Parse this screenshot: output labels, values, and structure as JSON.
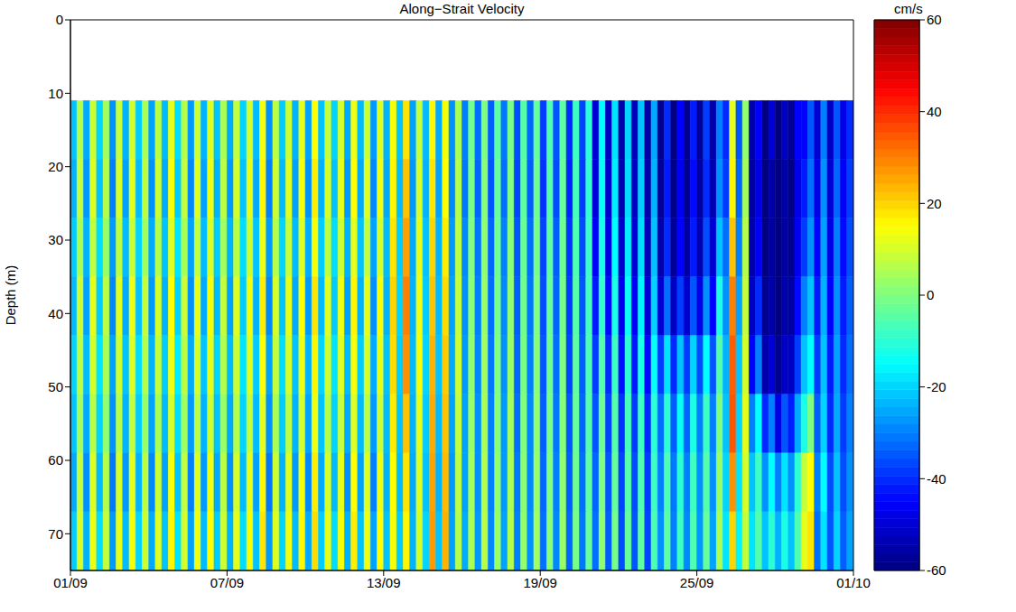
{
  "chart_data": {
    "type": "heatmap",
    "title": "Along−Strait Velocity",
    "y_label": "Depth (m)",
    "x_bins": [
      0,
      0.25,
      0.5,
      0.75,
      1,
      1.25,
      1.5,
      1.75,
      2,
      2.25,
      2.5,
      2.75,
      3,
      3.25,
      3.5,
      3.75,
      4,
      4.25,
      4.5,
      4.75,
      5,
      5.25,
      5.5,
      5.75,
      6,
      6.25,
      6.5,
      6.75,
      7,
      7.25,
      7.5,
      7.75,
      8,
      8.25,
      8.5,
      8.75,
      9,
      9.25,
      9.5,
      9.75,
      10,
      10.25,
      10.5,
      10.75,
      11,
      11.25,
      11.5,
      11.75,
      12,
      12.25,
      12.5,
      12.75,
      13,
      13.25,
      13.5,
      13.75,
      14,
      14.25,
      14.5,
      14.75,
      15,
      15.25,
      15.5,
      15.75,
      16,
      16.25,
      16.5,
      16.75,
      17,
      17.25,
      17.5,
      17.75,
      18,
      18.25,
      18.5,
      18.75,
      19,
      19.25,
      19.5,
      19.75,
      20,
      20.25,
      20.5,
      20.75,
      21,
      21.25,
      21.5,
      21.75,
      22,
      22.25,
      22.5,
      22.75,
      23,
      23.25,
      23.5,
      23.75,
      24,
      24.25,
      24.5,
      24.75,
      25,
      25.25,
      25.5,
      25.75,
      26,
      26.25,
      26.5,
      26.75,
      27,
      27.25,
      27.5,
      27.75,
      28,
      28.25,
      28.5,
      28.75,
      29,
      29.25,
      29.5,
      29.75,
      30
    ],
    "xlim": [
      0,
      30
    ],
    "xticks": [
      {
        "value": 0,
        "label": "01/09"
      },
      {
        "value": 6,
        "label": "07/09"
      },
      {
        "value": 12,
        "label": "13/09"
      },
      {
        "value": 18,
        "label": "19/09"
      },
      {
        "value": 24,
        "label": "25/09"
      },
      {
        "value": 30,
        "label": "01/10"
      }
    ],
    "y_bins": [
      11,
      19,
      27,
      35,
      43,
      51,
      59,
      67,
      75
    ],
    "ylim": [
      0,
      75
    ],
    "yticks": [
      0,
      10,
      20,
      30,
      40,
      50,
      60,
      70
    ],
    "values": [
      [
        -22,
        6,
        -25,
        9,
        -20,
        4,
        -28,
        8,
        -24,
        10,
        -21,
        5,
        -26,
        7,
        -23,
        12,
        -19,
        6,
        -27,
        9,
        -24,
        11,
        -22,
        5,
        -25,
        8,
        -20,
        10,
        -23,
        14,
        -28,
        7,
        -21,
        9,
        -24,
        12,
        -26,
        15,
        -22,
        8,
        -20,
        10,
        -25,
        13,
        -23,
        9,
        -27,
        11,
        -24,
        14,
        -22,
        18,
        -26,
        8,
        -23,
        16,
        -25,
        14,
        -28,
        5,
        -30,
        -2,
        -32,
        0,
        -34,
        -4,
        -31,
        -1,
        -36,
        -5,
        -33,
        -3,
        -38,
        -6,
        -35,
        -4,
        -40,
        -8,
        -37,
        -10,
        -50,
        -15,
        -52,
        -18,
        -55,
        -20,
        -53,
        -22,
        -56,
        -25,
        -58,
        -40,
        -60,
        -45,
        -58,
        -42,
        -57,
        -38,
        -55,
        -30,
        -40,
        12,
        -35,
        2,
        -55,
        -45,
        -60,
        -50,
        -60,
        -52,
        -58,
        -45,
        -45,
        -35,
        -50,
        -30,
        -52,
        -35,
        -48,
        -40
      ],
      [
        -24,
        8,
        -27,
        11,
        -22,
        6,
        -30,
        10,
        -26,
        12,
        -23,
        7,
        -28,
        9,
        -25,
        14,
        -21,
        8,
        -29,
        11,
        -26,
        13,
        -24,
        7,
        -27,
        10,
        -22,
        12,
        -25,
        16,
        -30,
        9,
        -23,
        11,
        -26,
        14,
        -28,
        17,
        -24,
        10,
        -22,
        12,
        -27,
        15,
        -25,
        11,
        -29,
        13,
        -25,
        16,
        -23,
        22,
        -27,
        10,
        -24,
        18,
        -26,
        15,
        -29,
        6,
        -31,
        -1,
        -33,
        1,
        -35,
        -3,
        -32,
        0,
        -37,
        -4,
        -34,
        -2,
        -39,
        -5,
        -36,
        -3,
        -41,
        -7,
        -38,
        -9,
        -49,
        -14,
        -51,
        -17,
        -54,
        -19,
        -52,
        -21,
        -55,
        -24,
        -57,
        -42,
        -59,
        -46,
        -58,
        -44,
        -56,
        -40,
        -54,
        -28,
        -38,
        16,
        -33,
        4,
        -56,
        -48,
        -60,
        -55,
        -60,
        -55,
        -59,
        -48,
        -42,
        -32,
        -48,
        -28,
        -50,
        -33,
        -46,
        -38
      ],
      [
        -21,
        5,
        -24,
        8,
        -19,
        3,
        -27,
        7,
        -23,
        9,
        -20,
        4,
        -25,
        6,
        -22,
        11,
        -18,
        5,
        -26,
        8,
        -23,
        10,
        -21,
        4,
        -24,
        7,
        -19,
        9,
        -22,
        13,
        -27,
        6,
        -20,
        8,
        -23,
        11,
        -25,
        14,
        -21,
        7,
        -19,
        9,
        -24,
        12,
        -22,
        8,
        -26,
        10,
        -23,
        18,
        -21,
        26,
        -25,
        12,
        -22,
        20,
        -24,
        17,
        -27,
        7,
        -29,
        0,
        -31,
        2,
        -33,
        -2,
        -30,
        1,
        -35,
        -3,
        -32,
        -1,
        -37,
        -4,
        -34,
        -2,
        -39,
        -6,
        -36,
        -8,
        -46,
        -12,
        -48,
        -15,
        -51,
        -17,
        -50,
        -19,
        -53,
        -22,
        -55,
        -40,
        -57,
        -45,
        -56,
        -42,
        -54,
        -36,
        -50,
        -22,
        -32,
        22,
        -30,
        6,
        -55,
        -46,
        -60,
        -56,
        -60,
        -56,
        -58,
        -47,
        -38,
        -28,
        -45,
        -26,
        -48,
        -30,
        -44,
        -36
      ],
      [
        -23,
        9,
        -26,
        12,
        -21,
        7,
        -29,
        11,
        -25,
        13,
        -22,
        8,
        -27,
        10,
        -24,
        15,
        -20,
        9,
        -28,
        12,
        -25,
        14,
        -23,
        8,
        -26,
        11,
        -21,
        13,
        -24,
        17,
        -29,
        10,
        -22,
        12,
        -25,
        15,
        -27,
        18,
        -23,
        11,
        -21,
        13,
        -26,
        16,
        -24,
        12,
        -28,
        14,
        -24,
        20,
        -20,
        30,
        -24,
        13,
        -21,
        22,
        -23,
        19,
        -26,
        8,
        -28,
        1,
        -30,
        3,
        -32,
        -1,
        -29,
        2,
        -34,
        -2,
        -31,
        0,
        -36,
        -3,
        -33,
        -1,
        -38,
        -5,
        -35,
        -7,
        -42,
        -9,
        -44,
        -12,
        -47,
        -14,
        -46,
        -16,
        -50,
        -20,
        -50,
        -32,
        -52,
        -38,
        -51,
        -35,
        -48,
        -28,
        -45,
        -12,
        -28,
        30,
        -26,
        8,
        -52,
        -40,
        -58,
        -55,
        -60,
        -55,
        -56,
        -44,
        -30,
        -22,
        -42,
        -24,
        -45,
        -28,
        -42,
        -34
      ],
      [
        -20,
        7,
        -23,
        10,
        -18,
        5,
        -26,
        9,
        -22,
        11,
        -19,
        6,
        -24,
        8,
        -21,
        13,
        -17,
        7,
        -25,
        10,
        -22,
        12,
        -20,
        6,
        -23,
        9,
        -18,
        11,
        -21,
        15,
        -26,
        8,
        -19,
        10,
        -22,
        13,
        -24,
        16,
        -20,
        9,
        -18,
        11,
        -23,
        14,
        -21,
        10,
        -25,
        12,
        -22,
        19,
        -21,
        28,
        -23,
        14,
        -20,
        24,
        -22,
        21,
        -25,
        9,
        -27,
        2,
        -29,
        4,
        -31,
        0,
        -28,
        3,
        -33,
        -1,
        -30,
        1,
        -35,
        -2,
        -32,
        0,
        -37,
        -4,
        -34,
        -6,
        -38,
        -5,
        -40,
        -8,
        -43,
        -10,
        -42,
        -12,
        -44,
        -14,
        -38,
        -18,
        -40,
        -22,
        -38,
        -20,
        -36,
        -15,
        -35,
        -5,
        -24,
        34,
        -22,
        10,
        -45,
        -30,
        -55,
        -50,
        -58,
        -52,
        -52,
        -38,
        -22,
        -15,
        -38,
        -22,
        -42,
        -26,
        -40,
        -32
      ],
      [
        -22,
        4,
        -25,
        7,
        -20,
        2,
        -28,
        6,
        -24,
        8,
        -21,
        3,
        -26,
        5,
        -23,
        10,
        -19,
        4,
        -27,
        7,
        -24,
        9,
        -22,
        3,
        -25,
        6,
        -20,
        8,
        -23,
        12,
        -28,
        5,
        -21,
        7,
        -24,
        10,
        -26,
        13,
        -22,
        6,
        -20,
        8,
        -25,
        11,
        -23,
        7,
        -27,
        9,
        -23,
        17,
        -22,
        22,
        -24,
        12,
        -21,
        25,
        -23,
        22,
        -26,
        8,
        -26,
        3,
        -28,
        5,
        -30,
        1,
        -27,
        4,
        -32,
        0,
        -29,
        2,
        -34,
        -1,
        -31,
        1,
        -35,
        -3,
        -33,
        -5,
        -35,
        -2,
        -37,
        -5,
        -39,
        -7,
        -38,
        -8,
        -40,
        -10,
        -32,
        -10,
        -34,
        -14,
        -33,
        -12,
        -30,
        -8,
        -30,
        0,
        -22,
        35,
        -20,
        12,
        -30,
        -15,
        -40,
        -30,
        -48,
        -35,
        -42,
        -25,
        -12,
        0,
        -34,
        -20,
        -40,
        -25,
        -38,
        -30
      ],
      [
        -25,
        8,
        -28,
        11,
        -23,
        6,
        -31,
        10,
        -27,
        12,
        -24,
        7,
        -29,
        9,
        -26,
        14,
        -22,
        8,
        -30,
        11,
        -27,
        13,
        -25,
        7,
        -28,
        10,
        -23,
        12,
        -26,
        16,
        -31,
        9,
        -24,
        11,
        -27,
        14,
        -29,
        17,
        -25,
        10,
        -23,
        12,
        -28,
        15,
        -26,
        11,
        -30,
        13,
        -24,
        15,
        -23,
        18,
        -25,
        11,
        -22,
        26,
        -24,
        23,
        -27,
        7,
        -26,
        4,
        -28,
        6,
        -30,
        2,
        -27,
        5,
        -31,
        1,
        -29,
        3,
        -33,
        0,
        -30,
        2,
        -34,
        -2,
        -32,
        -4,
        -33,
        0,
        -35,
        -3,
        -37,
        -5,
        -36,
        -6,
        -38,
        -8,
        -30,
        -6,
        -31,
        -10,
        -30,
        -8,
        -28,
        -5,
        -28,
        3,
        -20,
        28,
        -18,
        10,
        -22,
        -8,
        -28,
        -15,
        -30,
        -18,
        -28,
        -10,
        8,
        15,
        -30,
        -15,
        -36,
        -22,
        -36,
        -28
      ],
      [
        -21,
        10,
        -24,
        13,
        -19,
        8,
        -27,
        12,
        -23,
        14,
        -20,
        9,
        -25,
        11,
        -22,
        16,
        -18,
        10,
        -26,
        13,
        -23,
        15,
        -21,
        9,
        -24,
        12,
        -19,
        14,
        -22,
        18,
        -27,
        11,
        -20,
        13,
        -23,
        16,
        -25,
        19,
        -21,
        12,
        -19,
        14,
        -24,
        17,
        -22,
        13,
        -26,
        15,
        -22,
        14,
        -21,
        16,
        -24,
        10,
        -20,
        27,
        -22,
        24,
        -26,
        6,
        -25,
        5,
        -27,
        7,
        -29,
        3,
        -26,
        6,
        -30,
        2,
        -28,
        4,
        -32,
        1,
        -29,
        3,
        -33,
        -1,
        -31,
        -3,
        -32,
        2,
        -34,
        -1,
        -36,
        -3,
        -35,
        -4,
        -37,
        -6,
        -28,
        -4,
        -30,
        -8,
        -29,
        -6,
        -27,
        -3,
        -26,
        5,
        -18,
        20,
        -16,
        8,
        -18,
        -5,
        -22,
        -10,
        -24,
        -12,
        -22,
        -6,
        12,
        18,
        -32,
        -18,
        -35,
        -20,
        -34,
        -26
      ]
    ],
    "colorbar": {
      "label": "cm/s",
      "range": [
        -60,
        60
      ],
      "ticks": [
        -60,
        -40,
        -20,
        0,
        20,
        40,
        60
      ]
    }
  }
}
